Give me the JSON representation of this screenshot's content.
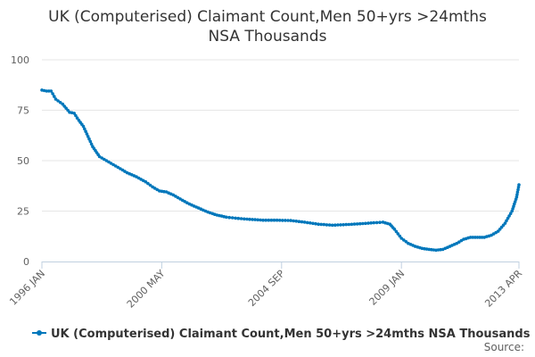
{
  "chart_data": {
    "type": "line",
    "title_lines": [
      "UK (Computerised) Claimant Count,Men 50+yrs >24mths",
      "NSA Thousands"
    ],
    "xlabel": "",
    "ylabel": "",
    "ylim": [
      0,
      100
    ],
    "yticks": [
      0,
      25,
      50,
      75,
      100
    ],
    "x_range": [
      "1996 JAN",
      "2013 APR"
    ],
    "x_ticks": [
      {
        "label": "1996 JAN",
        "t": 1996.0
      },
      {
        "label": "2000 MAY",
        "t": 2000.333
      },
      {
        "label": "2004 SEP",
        "t": 2004.667
      },
      {
        "label": "2009 JAN",
        "t": 2009.0
      },
      {
        "label": "2013 APR",
        "t": 2013.25
      }
    ],
    "grid": true,
    "legend_position": "bottom",
    "series": [
      {
        "name": "UK (Computerised) Claimant Count,Men 50+yrs >24mths NSA Thousands",
        "color": "#0077bb",
        "points": [
          [
            "1996 JAN",
            85
          ],
          [
            "1996 MAR",
            84.5
          ],
          [
            "1996 MAY",
            84.5
          ],
          [
            "1996 JUL",
            80.5
          ],
          [
            "1996 OCT",
            78
          ],
          [
            "1997 JAN",
            74
          ],
          [
            "1997 MAR",
            73.5
          ],
          [
            "1997 MAY",
            70
          ],
          [
            "1997 JUL",
            67
          ],
          [
            "1997 SEP",
            62
          ],
          [
            "1997 NOV",
            57
          ],
          [
            "1998 FEB",
            52
          ],
          [
            "1998 MAY",
            50
          ],
          [
            "1998 AUG",
            48
          ],
          [
            "1998 NOV",
            46
          ],
          [
            "1999 FEB",
            44
          ],
          [
            "1999 JUN",
            42
          ],
          [
            "1999 OCT",
            39.5
          ],
          [
            "2000 JAN",
            37
          ],
          [
            "2000 APR",
            35
          ],
          [
            "2000 JUL",
            34.5
          ],
          [
            "2000 OCT",
            33
          ],
          [
            "2001 JAN",
            31
          ],
          [
            "2001 MAY",
            28.5
          ],
          [
            "2001 SEP",
            26.5
          ],
          [
            "2002 JAN",
            24.5
          ],
          [
            "2002 MAY",
            23
          ],
          [
            "2002 SEP",
            22
          ],
          [
            "2003 JAN",
            21.5
          ],
          [
            "2003 JUN",
            21
          ],
          [
            "2004 JAN",
            20.5
          ],
          [
            "2004 JUL",
            20.5
          ],
          [
            "2005 JAN",
            20.3
          ],
          [
            "2005 JUL",
            19.5
          ],
          [
            "2006 JAN",
            18.5
          ],
          [
            "2006 JUL",
            18
          ],
          [
            "2007 JAN",
            18.3
          ],
          [
            "2007 JUL",
            18.7
          ],
          [
            "2008 JAN",
            19.2
          ],
          [
            "2008 MAY",
            19.5
          ],
          [
            "2008 AUG",
            18.5
          ],
          [
            "2008 OCT",
            16
          ],
          [
            "2009 JAN",
            11.5
          ],
          [
            "2009 APR",
            9
          ],
          [
            "2009 JUL",
            7.5
          ],
          [
            "2009 OCT",
            6.5
          ],
          [
            "2010 JAN",
            6
          ],
          [
            "2010 APR",
            5.6
          ],
          [
            "2010 JUL",
            6
          ],
          [
            "2010 OCT",
            7.5
          ],
          [
            "2011 JAN",
            9
          ],
          [
            "2011 APR",
            11
          ],
          [
            "2011 JUL",
            12
          ],
          [
            "2011 OCT",
            12
          ],
          [
            "2012 JAN",
            12
          ],
          [
            "2012 APR",
            13
          ],
          [
            "2012 JUL",
            15
          ],
          [
            "2012 OCT",
            19
          ],
          [
            "2013 JAN",
            25
          ],
          [
            "2013 MAR",
            32
          ],
          [
            "2013 APR",
            38
          ]
        ]
      }
    ],
    "source_label": "Source:"
  }
}
